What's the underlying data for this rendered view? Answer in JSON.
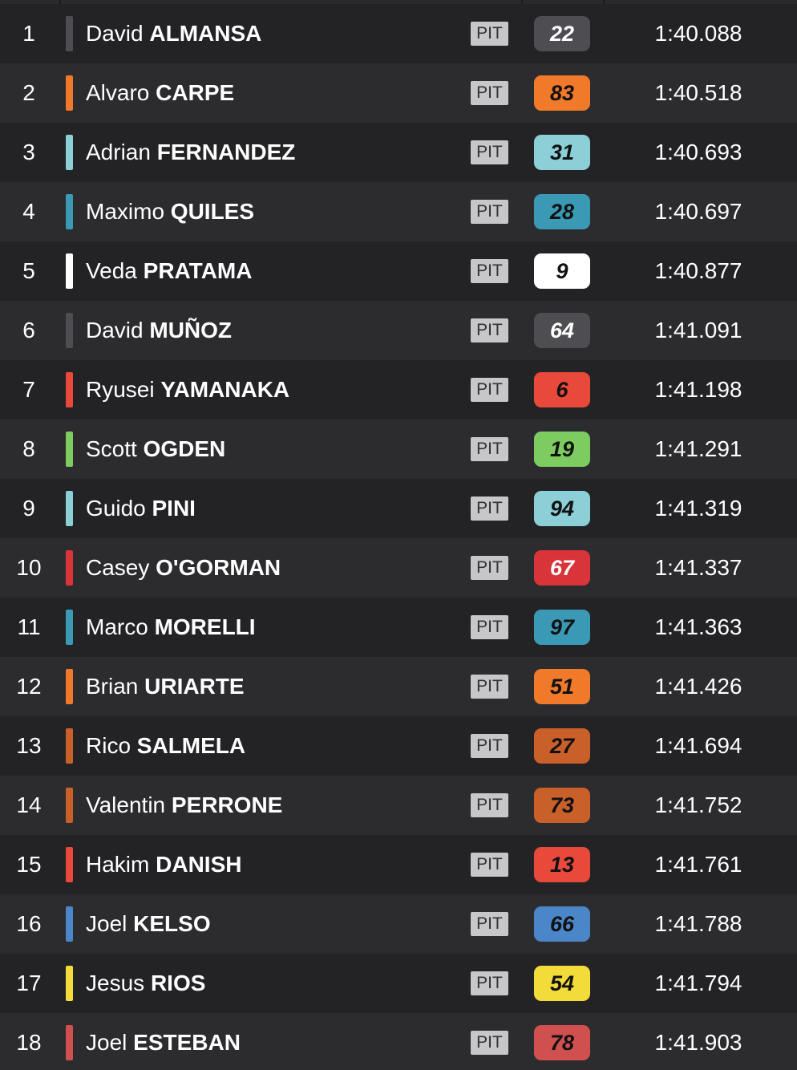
{
  "rows": [
    {
      "pos": "1",
      "first": "David",
      "last": "ALMANSA",
      "pit": "PIT",
      "number": "22",
      "time": "1:40.088",
      "color": "#4e4e52",
      "number_text_color": "#ffffff"
    },
    {
      "pos": "2",
      "first": "Alvaro",
      "last": "CARPE",
      "pit": "PIT",
      "number": "83",
      "time": "1:40.518",
      "color": "#f07a2a",
      "number_text_color": "#111111"
    },
    {
      "pos": "3",
      "first": "Adrian",
      "last": "FERNANDEZ",
      "pit": "PIT",
      "number": "31",
      "time": "1:40.693",
      "color": "#8ccfd6",
      "number_text_color": "#111111"
    },
    {
      "pos": "4",
      "first": "Maximo",
      "last": "QUILES",
      "pit": "PIT",
      "number": "28",
      "time": "1:40.697",
      "color": "#3a9ab5",
      "number_text_color": "#111111"
    },
    {
      "pos": "5",
      "first": "Veda",
      "last": "PRATAMA",
      "pit": "PIT",
      "number": "9",
      "time": "1:40.877",
      "color": "#ffffff",
      "number_text_color": "#111111"
    },
    {
      "pos": "6",
      "first": "David",
      "last": "MUÑOZ",
      "pit": "PIT",
      "number": "64",
      "time": "1:41.091",
      "color": "#4e4e52",
      "number_text_color": "#ffffff"
    },
    {
      "pos": "7",
      "first": "Ryusei",
      "last": "YAMANAKA",
      "pit": "PIT",
      "number": "6",
      "time": "1:41.198",
      "color": "#e8493a",
      "number_text_color": "#111111"
    },
    {
      "pos": "8",
      "first": "Scott",
      "last": "OGDEN",
      "pit": "PIT",
      "number": "19",
      "time": "1:41.291",
      "color": "#7dcc5f",
      "number_text_color": "#111111"
    },
    {
      "pos": "9",
      "first": "Guido",
      "last": "PINI",
      "pit": "PIT",
      "number": "94",
      "time": "1:41.319",
      "color": "#8ccfd6",
      "number_text_color": "#111111"
    },
    {
      "pos": "10",
      "first": "Casey",
      "last": "O'GORMAN",
      "pit": "PIT",
      "number": "67",
      "time": "1:41.337",
      "color": "#d9343a",
      "number_text_color": "#ffffff"
    },
    {
      "pos": "11",
      "first": "Marco",
      "last": "MORELLI",
      "pit": "PIT",
      "number": "97",
      "time": "1:41.363",
      "color": "#3a9ab5",
      "number_text_color": "#111111"
    },
    {
      "pos": "12",
      "first": "Brian",
      "last": "URIARTE",
      "pit": "PIT",
      "number": "51",
      "time": "1:41.426",
      "color": "#f07a2a",
      "number_text_color": "#111111"
    },
    {
      "pos": "13",
      "first": "Rico",
      "last": "SALMELA",
      "pit": "PIT",
      "number": "27",
      "time": "1:41.694",
      "color": "#c9602a",
      "number_text_color": "#111111"
    },
    {
      "pos": "14",
      "first": "Valentin",
      "last": "PERRONE",
      "pit": "PIT",
      "number": "73",
      "time": "1:41.752",
      "color": "#c9602a",
      "number_text_color": "#111111"
    },
    {
      "pos": "15",
      "first": "Hakim",
      "last": "DANISH",
      "pit": "PIT",
      "number": "13",
      "time": "1:41.761",
      "color": "#e8493a",
      "number_text_color": "#111111"
    },
    {
      "pos": "16",
      "first": "Joel",
      "last": "KELSO",
      "pit": "PIT",
      "number": "66",
      "time": "1:41.788",
      "color": "#4a86c8",
      "number_text_color": "#111111"
    },
    {
      "pos": "17",
      "first": "Jesus",
      "last": "RIOS",
      "pit": "PIT",
      "number": "54",
      "time": "1:41.794",
      "color": "#f3dc3a",
      "number_text_color": "#111111"
    },
    {
      "pos": "18",
      "first": "Joel",
      "last": "ESTEBAN",
      "pit": "PIT",
      "number": "78",
      "time": "1:41.903",
      "color": "#d0504f",
      "number_text_color": "#111111"
    }
  ]
}
